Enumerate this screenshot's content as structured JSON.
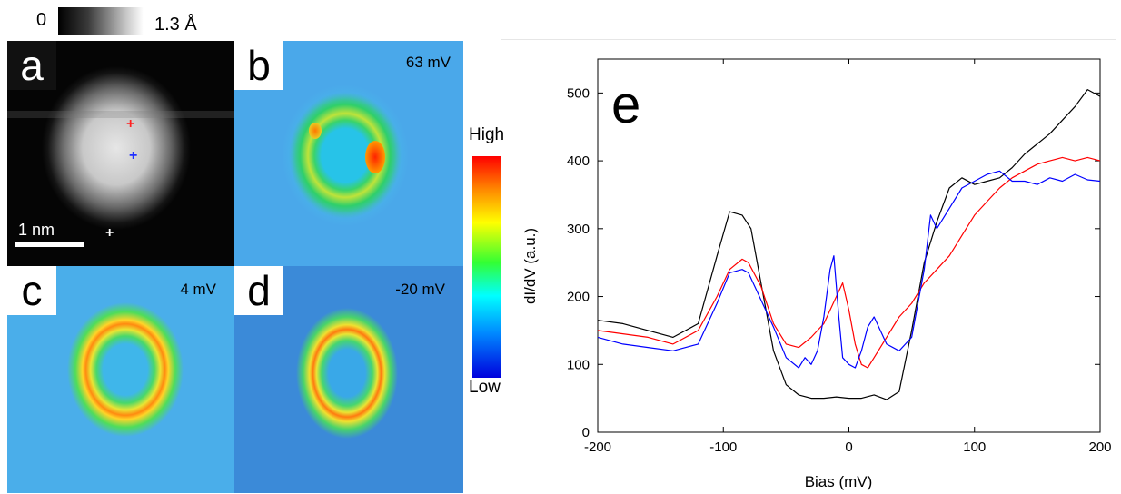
{
  "height_scale": {
    "min_label": "0",
    "max_label": "1.3 Å"
  },
  "panels": {
    "a": {
      "letter": "a",
      "scalebar_label": "1 nm"
    },
    "b": {
      "letter": "b",
      "energy": "63 mV"
    },
    "c": {
      "letter": "c",
      "energy": "4 mV"
    },
    "d": {
      "letter": "d",
      "energy": "-20 mV"
    }
  },
  "colorbar": {
    "high_label": "High",
    "low_label": "Low"
  },
  "colors": {
    "black_series": "#000000",
    "red_series": "#ff0000",
    "blue_series": "#0000ff",
    "marker_red": "#ff2020",
    "marker_blue": "#2030ff"
  },
  "chart_data": {
    "type": "line",
    "panel_label": "e",
    "xlabel": "Bias (mV)",
    "ylabel": "dI/dV (a.u.)",
    "xlim": [
      -200,
      200
    ],
    "ylim": [
      0,
      550
    ],
    "xticks": [
      -200,
      -100,
      0,
      100,
      200
    ],
    "yticks": [
      0,
      100,
      200,
      300,
      400,
      500
    ],
    "grid": false,
    "series": [
      {
        "color": "#000000",
        "x": [
          -200,
          -180,
          -160,
          -140,
          -120,
          -105,
          -95,
          -85,
          -78,
          -70,
          -60,
          -50,
          -40,
          -30,
          -20,
          -10,
          0,
          10,
          20,
          30,
          40,
          50,
          60,
          70,
          80,
          90,
          100,
          110,
          120,
          130,
          140,
          150,
          160,
          170,
          180,
          190,
          200
        ],
        "y": [
          165,
          160,
          150,
          140,
          160,
          260,
          325,
          320,
          300,
          220,
          120,
          70,
          55,
          50,
          50,
          52,
          50,
          50,
          55,
          48,
          60,
          150,
          250,
          310,
          360,
          375,
          365,
          370,
          375,
          390,
          410,
          425,
          440,
          460,
          480,
          505,
          495
        ]
      },
      {
        "color": "#ff0000",
        "x": [
          -200,
          -180,
          -160,
          -140,
          -120,
          -105,
          -95,
          -85,
          -80,
          -70,
          -60,
          -50,
          -40,
          -30,
          -20,
          -10,
          -5,
          0,
          5,
          10,
          15,
          20,
          30,
          40,
          50,
          60,
          70,
          80,
          90,
          100,
          110,
          120,
          130,
          140,
          150,
          160,
          170,
          180,
          190,
          200
        ],
        "y": [
          150,
          145,
          140,
          130,
          150,
          200,
          240,
          255,
          250,
          215,
          160,
          130,
          125,
          140,
          160,
          200,
          220,
          180,
          130,
          100,
          95,
          110,
          140,
          170,
          190,
          220,
          240,
          260,
          290,
          320,
          340,
          360,
          375,
          385,
          395,
          400,
          405,
          400,
          405,
          400
        ]
      },
      {
        "color": "#0000ff",
        "x": [
          -200,
          -180,
          -160,
          -140,
          -120,
          -105,
          -95,
          -85,
          -80,
          -70,
          -60,
          -50,
          -40,
          -35,
          -30,
          -25,
          -20,
          -15,
          -12,
          -8,
          -5,
          0,
          5,
          10,
          15,
          20,
          25,
          30,
          40,
          50,
          60,
          65,
          70,
          80,
          90,
          100,
          110,
          120,
          130,
          140,
          150,
          160,
          170,
          180,
          190,
          200
        ],
        "y": [
          140,
          130,
          125,
          120,
          130,
          190,
          235,
          240,
          235,
          195,
          155,
          110,
          95,
          110,
          100,
          120,
          170,
          240,
          260,
          170,
          110,
          100,
          95,
          120,
          155,
          170,
          150,
          130,
          120,
          140,
          240,
          320,
          300,
          330,
          360,
          370,
          380,
          385,
          370,
          370,
          365,
          375,
          370,
          380,
          372,
          370
        ]
      }
    ]
  }
}
